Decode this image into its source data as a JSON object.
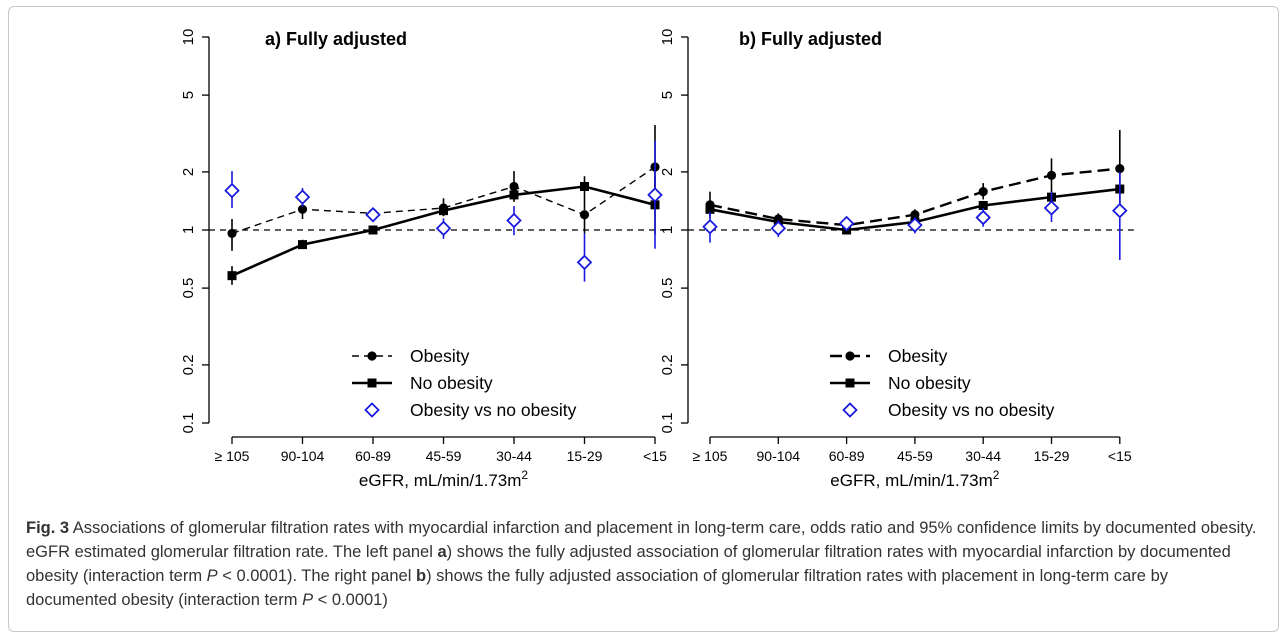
{
  "chart_data": [
    {
      "type": "line",
      "title": "a) Fully adjusted",
      "xlabel": "eGFR, mL/min/1.73m",
      "xlabel_sup": "2",
      "yscale": "log",
      "ylim": [
        0.1,
        10
      ],
      "yticks": [
        "0.1",
        "0.2",
        "0.5",
        "1",
        "2",
        "5",
        "10"
      ],
      "ytick_values": [
        0.1,
        0.2,
        0.5,
        1,
        2,
        5,
        10
      ],
      "categories": [
        "≥ 105",
        "90-104",
        "60-89",
        "45-59",
        "30-44",
        "15-29",
        "<15"
      ],
      "reference_line": 1,
      "series": [
        {
          "name": "Obesity",
          "marker": "circle",
          "line": "dashed",
          "color": "#000000",
          "values": [
            0.96,
            1.28,
            1.22,
            1.3,
            1.68,
            1.2,
            2.12
          ],
          "ci": [
            [
              0.78,
              1.14
            ],
            [
              1.14,
              1.42
            ],
            null,
            [
              1.18,
              1.46
            ],
            [
              1.4,
              2.02
            ],
            [
              0.96,
              1.5
            ],
            [
              1.3,
              3.5
            ]
          ]
        },
        {
          "name": "No obesity",
          "marker": "square",
          "line": "solid",
          "color": "#000000",
          "values": [
            0.58,
            0.84,
            1.0,
            1.26,
            1.52,
            1.68,
            1.35
          ],
          "ci": [
            [
              0.52,
              0.65
            ],
            [
              0.8,
              0.89
            ],
            null,
            [
              1.18,
              1.34
            ],
            [
              1.42,
              1.63
            ],
            [
              1.5,
              1.9
            ],
            [
              0.95,
              1.9
            ]
          ]
        },
        {
          "name": "Obesity vs no obesity",
          "marker": "diamond",
          "line": "none",
          "color": "#1a1adf",
          "values": [
            1.6,
            1.48,
            1.2,
            1.02,
            1.12,
            0.68,
            1.52
          ],
          "ci": [
            [
              1.3,
              2.02
            ],
            [
              1.32,
              1.65
            ],
            null,
            [
              0.9,
              1.15
            ],
            [
              0.94,
              1.33
            ],
            [
              0.54,
              0.96
            ],
            [
              0.8,
              2.9
            ]
          ]
        }
      ],
      "legend_position": "bottom-center"
    },
    {
      "type": "line",
      "title": "b) Fully adjusted",
      "xlabel": "eGFR, mL/min/1.73m",
      "xlabel_sup": "2",
      "yscale": "log",
      "ylim": [
        0.1,
        10
      ],
      "yticks": [
        "0.1",
        "0.2",
        "0.5",
        "1",
        "2",
        "5",
        "10"
      ],
      "ytick_values": [
        0.1,
        0.2,
        0.5,
        1,
        2,
        5,
        10
      ],
      "categories": [
        "≥ 105",
        "90-104",
        "60-89",
        "45-59",
        "30-44",
        "15-29",
        "<15"
      ],
      "reference_line": 1,
      "series": [
        {
          "name": "Obesity",
          "marker": "circle",
          "line": "dashed",
          "color": "#000000",
          "values": [
            1.35,
            1.14,
            1.06,
            1.2,
            1.58,
            1.92,
            2.08
          ],
          "ci": [
            [
              1.16,
              1.58
            ],
            [
              1.07,
              1.22
            ],
            null,
            [
              1.12,
              1.28
            ],
            [
              1.44,
              1.75
            ],
            [
              1.58,
              2.35
            ],
            [
              1.3,
              3.3
            ]
          ]
        },
        {
          "name": "No obesity",
          "marker": "square",
          "line": "solid",
          "color": "#000000",
          "values": [
            1.28,
            1.1,
            1.0,
            1.1,
            1.34,
            1.48,
            1.63
          ],
          "ci": [
            [
              1.2,
              1.36
            ],
            [
              1.06,
              1.14
            ],
            null,
            [
              1.06,
              1.15
            ],
            [
              1.28,
              1.4
            ],
            [
              1.36,
              1.6
            ],
            [
              1.3,
              2.0
            ]
          ]
        },
        {
          "name": "Obesity vs no obesity",
          "marker": "diamond",
          "line": "none",
          "color": "#1a1adf",
          "values": [
            1.04,
            1.02,
            1.08,
            1.06,
            1.16,
            1.3,
            1.26
          ],
          "ci": [
            [
              0.86,
              1.24
            ],
            [
              0.92,
              1.12
            ],
            null,
            [
              0.96,
              1.16
            ],
            [
              1.04,
              1.3
            ],
            [
              1.1,
              1.58
            ],
            [
              0.7,
              2.0
            ]
          ]
        }
      ],
      "legend_position": "bottom-center"
    }
  ],
  "caption": {
    "fig_label": "Fig. 3",
    "part1": " Associations of glomerular filtration rates with myocardial infarction and placement in long-term care, odds ratio and 95% confidence limits by documented obesity. eGFR estimated glomerular filtration rate. The left panel ",
    "bold_a": "a",
    "part2": ") shows the fully adjusted association of glomerular filtration rates with myocardial infarction by documented obesity (interaction term ",
    "p1": "P",
    "part3": " < 0.0001). The right panel ",
    "bold_b": "b",
    "part4": ") shows the fully adjusted association of glomerular filtration rates with placement in long-term care by documented obesity (interaction term ",
    "p2": "P",
    "part5": " < 0.0001)"
  }
}
